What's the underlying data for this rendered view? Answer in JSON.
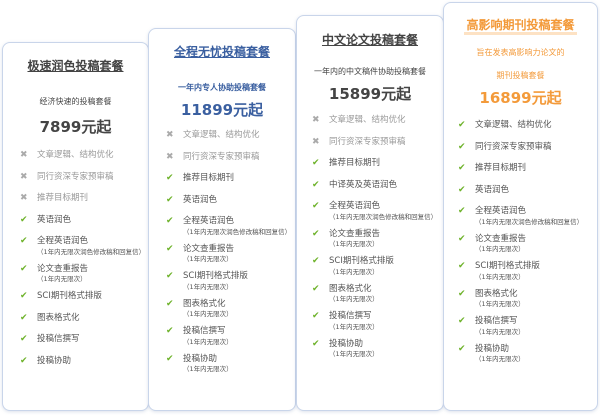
{
  "colors": {
    "check": "#6db22a",
    "cross": "#aaaaaa",
    "blue": "#3a5fa0",
    "orange": "#f39a3a"
  },
  "cards": [
    {
      "title": "极速润色投稿套餐",
      "subtitle": [
        "经济快速的投稿套餐"
      ],
      "price": "7899元起",
      "items": [
        {
          "label": "文章逻辑、结构优化",
          "included": false,
          "icon": "cross-icon"
        },
        {
          "label": "同行资深专家预审稿",
          "included": false,
          "icon": "cross-icon"
        },
        {
          "label": "推荐目标期刊",
          "included": false,
          "icon": "cross-icon"
        },
        {
          "label": "英语润色",
          "included": true,
          "icon": "check-icon"
        },
        {
          "label": "全程英语润色",
          "note": "（1年内无限次润色修改稿和回复信）",
          "included": true,
          "icon": "check-icon"
        },
        {
          "label": "论文查重报告",
          "note": "（1年内无限次）",
          "included": true,
          "icon": "check-icon"
        },
        {
          "label": "SCI期刊格式排版",
          "included": true,
          "icon": "check-icon"
        },
        {
          "label": "图表格式化",
          "included": true,
          "icon": "check-icon"
        },
        {
          "label": "投稿信撰写",
          "included": true,
          "icon": "check-icon"
        },
        {
          "label": "投稿协助",
          "included": true,
          "icon": "check-icon"
        }
      ]
    },
    {
      "title": "全程无忧投稿套餐",
      "subtitle": [
        "一年内专人协助投稿套餐"
      ],
      "price": "11899元起",
      "items": [
        {
          "label": "文章逻辑、结构优化",
          "included": false,
          "icon": "cross-icon"
        },
        {
          "label": "同行资深专家预审稿",
          "included": false,
          "icon": "cross-icon"
        },
        {
          "label": "推荐目标期刊",
          "included": true,
          "icon": "check-icon"
        },
        {
          "label": "英语润色",
          "included": true,
          "icon": "check-icon"
        },
        {
          "label": "全程英语润色",
          "note": "（1年内无限次润色修改稿和回复信）",
          "included": true,
          "icon": "check-icon"
        },
        {
          "label": "论文查重报告",
          "note": "（1年内无限次）",
          "included": true,
          "icon": "check-icon"
        },
        {
          "label": "SCI期刊格式排版",
          "note": "（1年内无限次）",
          "included": true,
          "icon": "check-icon"
        },
        {
          "label": "图表格式化",
          "note": "（1年内无限次）",
          "included": true,
          "icon": "check-icon"
        },
        {
          "label": "投稿信撰写",
          "note": "（1年内无限次）",
          "included": true,
          "icon": "check-icon"
        },
        {
          "label": "投稿协助",
          "note": "（1年内无限次）",
          "included": true,
          "icon": "check-icon"
        }
      ]
    },
    {
      "title": "中文论文投稿套餐",
      "subtitle": [
        "一年内的中文稿件协助投稿套餐"
      ],
      "price": "15899元起",
      "items": [
        {
          "label": "文章逻辑、结构优化",
          "included": false,
          "icon": "cross-icon"
        },
        {
          "label": "同行资深专家预审稿",
          "included": false,
          "icon": "cross-icon"
        },
        {
          "label": "推荐目标期刊",
          "included": true,
          "icon": "check-icon"
        },
        {
          "label": "中译英及英语润色",
          "included": true,
          "icon": "check-icon"
        },
        {
          "label": "全程英语润色",
          "note": "（1年内无限次润色修改稿和回复信）",
          "included": true,
          "icon": "check-icon"
        },
        {
          "label": "论文查重报告",
          "note": "（1年内无限次）",
          "included": true,
          "icon": "check-icon"
        },
        {
          "label": "SCI期刊格式排版",
          "note": "（1年内无限次）",
          "included": true,
          "icon": "check-icon"
        },
        {
          "label": "图表格式化",
          "note": "（1年内无限次）",
          "included": true,
          "icon": "check-icon"
        },
        {
          "label": "投稿信撰写",
          "note": "（1年内无限次）",
          "included": true,
          "icon": "check-icon"
        },
        {
          "label": "投稿协助",
          "note": "（1年内无限次）",
          "included": true,
          "icon": "check-icon"
        }
      ]
    },
    {
      "title": "高影响期刊投稿套餐",
      "subtitle": [
        "旨在发表高影响力论文的",
        "期刊投稿套餐"
      ],
      "price": "16899元起",
      "items": [
        {
          "label": "文章逻辑、结构优化",
          "included": true,
          "icon": "check-icon"
        },
        {
          "label": "同行资深专家预审稿",
          "included": true,
          "icon": "check-icon"
        },
        {
          "label": "推荐目标期刊",
          "included": true,
          "icon": "check-icon"
        },
        {
          "label": "英语润色",
          "included": true,
          "icon": "check-icon"
        },
        {
          "label": "全程英语润色",
          "note": "（1年内无限次润色修改稿和回复信）",
          "included": true,
          "icon": "check-icon"
        },
        {
          "label": "论文查重报告",
          "note": "（1年内无限次）",
          "included": true,
          "icon": "check-icon"
        },
        {
          "label": "SCI期刊格式排版",
          "note": "（1年内无限次）",
          "included": true,
          "icon": "check-icon"
        },
        {
          "label": "图表格式化",
          "note": "（1年内无限次）",
          "included": true,
          "icon": "check-icon"
        },
        {
          "label": "投稿信撰写",
          "note": "（1年内无限次）",
          "included": true,
          "icon": "check-icon"
        },
        {
          "label": "投稿协助",
          "note": "（1年内无限次）",
          "included": true,
          "icon": "check-icon"
        }
      ]
    }
  ]
}
